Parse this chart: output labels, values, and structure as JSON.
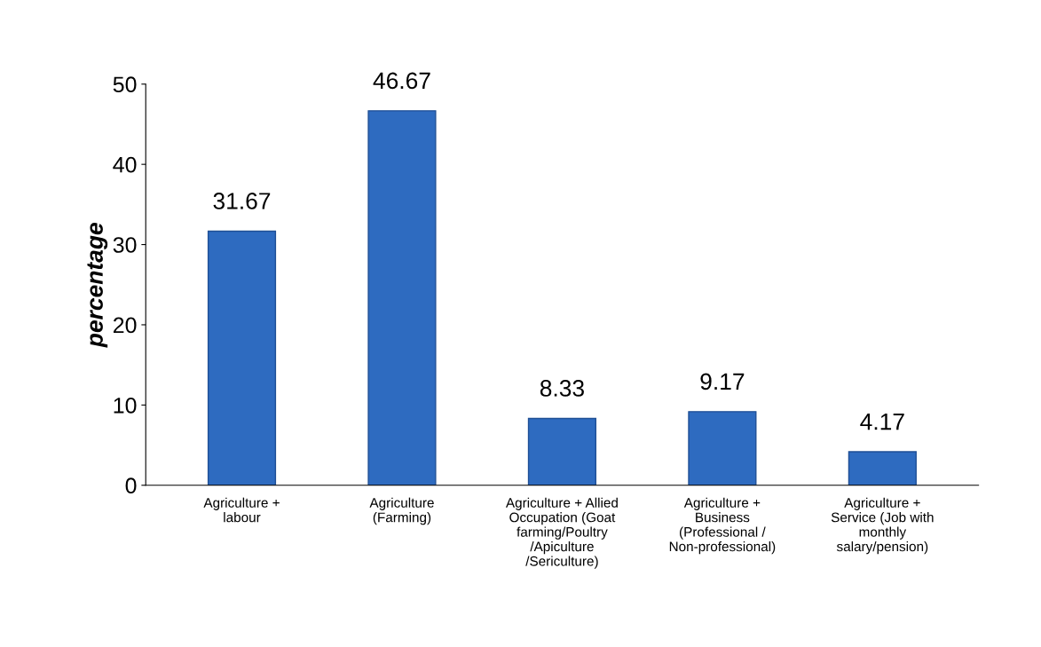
{
  "chart_data": {
    "type": "bar",
    "ylabel": "percentage",
    "categories": [
      "Agriculture +\nlabour",
      "Agriculture\n(Farming)",
      "Agriculture + Allied\nOccupation (Goat\nfarming/Poultry\n/Apiculture\n/Sericulture)",
      "Agriculture +\nBusiness\n(Professional /\nNon-professional)",
      "Agriculture +\nService (Job with\nmonthly\nsalary/pension)"
    ],
    "values": [
      31.67,
      46.67,
      8.33,
      9.17,
      4.17
    ],
    "color": "#2e6bc0",
    "ylim": [
      0,
      50
    ],
    "yticks": [
      0,
      10,
      20,
      30,
      40,
      50
    ],
    "grid": false,
    "data_labels": true
  }
}
